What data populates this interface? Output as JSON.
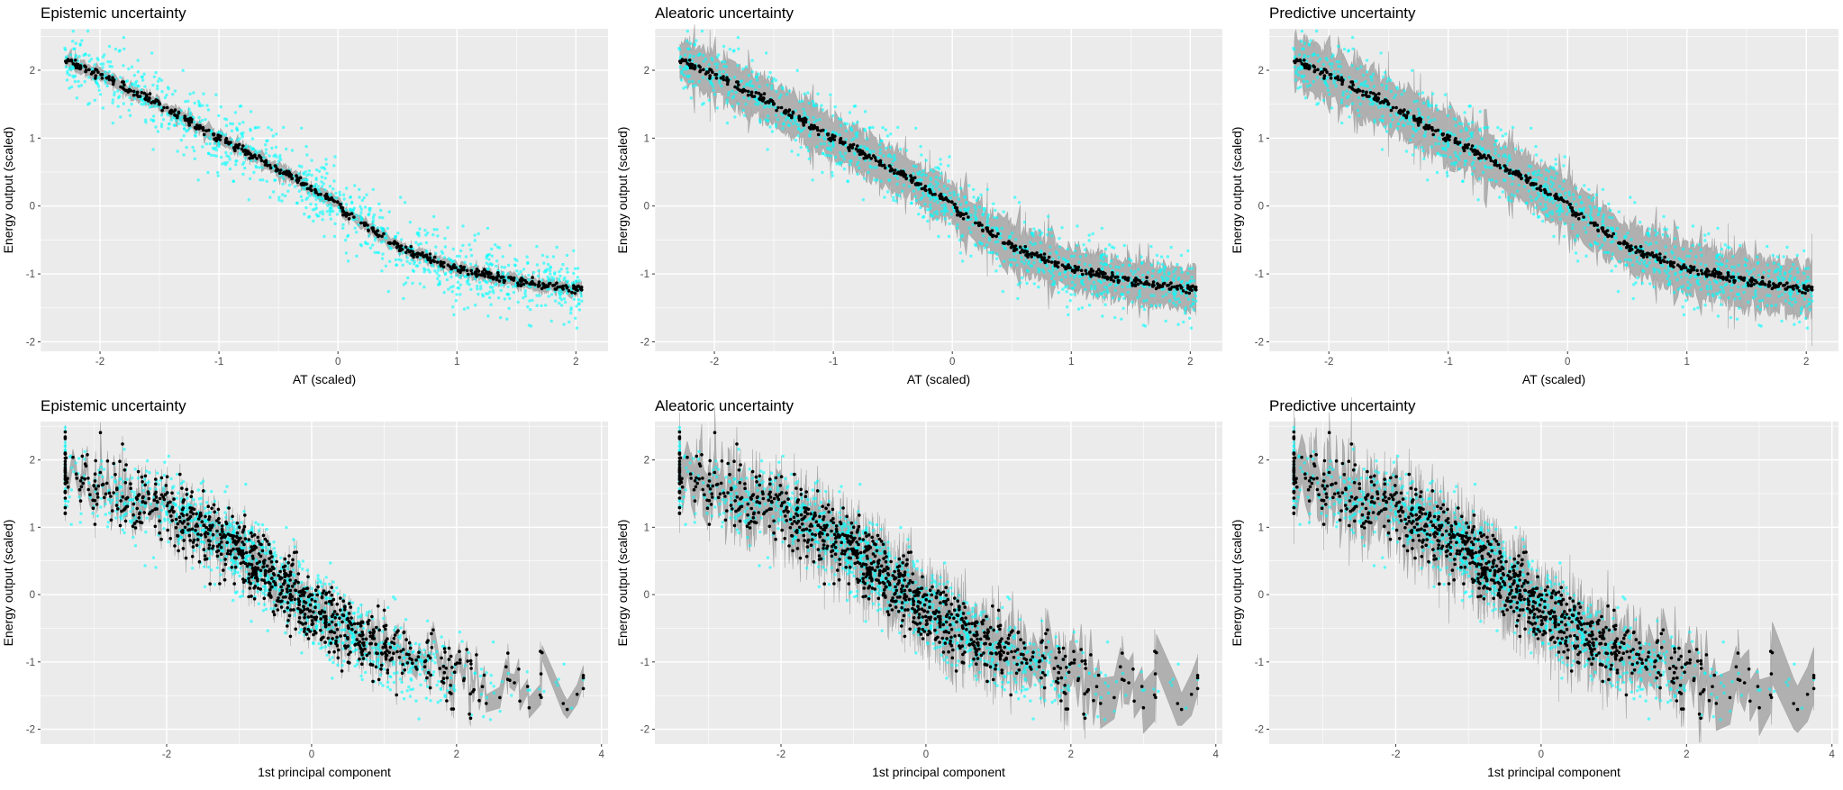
{
  "colors": {
    "panel_bg": "#EBEBEB",
    "grid": "#FFFFFF",
    "observed": "#00FFFF",
    "predicted": "#000000",
    "band": "#A6A6A6"
  },
  "chart_data": [
    {
      "type": "scatter",
      "title": "Epistemic uncertainty",
      "xlabel": "AT (scaled)",
      "ylabel": "Energy output (scaled)",
      "xlim": [
        -2.5,
        2.27
      ],
      "ylim": [
        -2.14,
        2.61
      ],
      "xticks": [
        -2,
        -1,
        0,
        1,
        2
      ],
      "yticks": [
        -2,
        -1,
        0,
        1,
        2
      ],
      "grid": true,
      "trend": {
        "x": [
          -2.3,
          -2.0,
          -1.5,
          -1.0,
          -0.5,
          -0.1,
          0.0,
          0.05,
          0.5,
          1.0,
          1.5,
          2.0,
          2.05
        ],
        "y": [
          2.15,
          1.93,
          1.5,
          1.0,
          0.55,
          0.12,
          0.08,
          -0.08,
          -0.6,
          -0.93,
          -1.1,
          -1.23,
          -1.2
        ]
      },
      "observed_sd": 0.25,
      "predicted_sd": 0.03,
      "band_halfwidth": 0.08
    },
    {
      "type": "scatter",
      "title": "Aleatoric uncertainty",
      "xlabel": "AT (scaled)",
      "ylabel": "Energy output (scaled)",
      "xlim": [
        -2.5,
        2.27
      ],
      "ylim": [
        -2.14,
        2.61
      ],
      "xticks": [
        -2,
        -1,
        0,
        1,
        2
      ],
      "yticks": [
        -2,
        -1,
        0,
        1,
        2
      ],
      "grid": true,
      "trend": {
        "x": [
          -2.3,
          -2.0,
          -1.5,
          -1.0,
          -0.5,
          -0.1,
          0.0,
          0.05,
          0.5,
          1.0,
          1.5,
          2.0,
          2.05
        ],
        "y": [
          2.15,
          1.93,
          1.5,
          1.0,
          0.55,
          0.12,
          0.08,
          -0.08,
          -0.6,
          -0.93,
          -1.1,
          -1.23,
          -1.2
        ]
      },
      "observed_sd": 0.25,
      "predicted_sd": 0.03,
      "band_halfwidth": 0.3
    },
    {
      "type": "scatter",
      "title": "Predictive uncertainty",
      "xlabel": "AT (scaled)",
      "ylabel": "Energy output (scaled)",
      "xlim": [
        -2.5,
        2.27
      ],
      "ylim": [
        -2.14,
        2.61
      ],
      "xticks": [
        -2,
        -1,
        0,
        1,
        2
      ],
      "yticks": [
        -2,
        -1,
        0,
        1,
        2
      ],
      "grid": true,
      "trend": {
        "x": [
          -2.3,
          -2.0,
          -1.5,
          -1.0,
          -0.5,
          -0.1,
          0.0,
          0.05,
          0.5,
          1.0,
          1.5,
          2.0,
          2.05
        ],
        "y": [
          2.15,
          1.93,
          1.5,
          1.0,
          0.55,
          0.12,
          0.08,
          -0.08,
          -0.6,
          -0.93,
          -1.1,
          -1.23,
          -1.2
        ]
      },
      "observed_sd": 0.25,
      "predicted_sd": 0.03,
      "band_halfwidth": 0.36
    },
    {
      "type": "scatter",
      "title": "Epistemic uncertainty",
      "xlabel": "1st principal component",
      "ylabel": "Energy output (scaled)",
      "xlim": [
        -3.74,
        4.09
      ],
      "ylim": [
        -2.22,
        2.57
      ],
      "xticks": [
        -2,
        0,
        2,
        4
      ],
      "yticks": [
        -2,
        -1,
        0,
        1,
        2
      ],
      "grid": true,
      "trend": {
        "x": [
          -3.4,
          -3.0,
          -2.0,
          -1.0,
          0.0,
          1.0,
          2.0,
          3.0,
          3.75
        ],
        "y": [
          1.8,
          1.55,
          1.3,
          0.65,
          -0.2,
          -0.85,
          -1.2,
          -1.35,
          -1.38
        ]
      },
      "observed_sd": 0.28,
      "predicted_sd": 0.25,
      "band_halfwidth": 0.1
    },
    {
      "type": "scatter",
      "title": "Aleatoric uncertainty",
      "xlabel": "1st principal component",
      "ylabel": "Energy output (scaled)",
      "xlim": [
        -3.74,
        4.09
      ],
      "ylim": [
        -2.22,
        2.57
      ],
      "xticks": [
        -2,
        0,
        2,
        4
      ],
      "yticks": [
        -2,
        -1,
        0,
        1,
        2
      ],
      "grid": true,
      "trend": {
        "x": [
          -3.4,
          -3.0,
          -2.0,
          -1.0,
          0.0,
          1.0,
          2.0,
          3.0,
          3.75
        ],
        "y": [
          1.8,
          1.55,
          1.3,
          0.65,
          -0.2,
          -0.85,
          -1.2,
          -1.35,
          -1.38
        ]
      },
      "observed_sd": 0.28,
      "predicted_sd": 0.25,
      "band_halfwidth": 0.28
    },
    {
      "type": "scatter",
      "title": "Predictive uncertainty",
      "xlabel": "1st principal component",
      "ylabel": "Energy output (scaled)",
      "xlim": [
        -3.74,
        4.09
      ],
      "ylim": [
        -2.22,
        2.57
      ],
      "xticks": [
        -2,
        0,
        2,
        4
      ],
      "yticks": [
        -2,
        -1,
        0,
        1,
        2
      ],
      "grid": true,
      "trend": {
        "x": [
          -3.4,
          -3.0,
          -2.0,
          -1.0,
          0.0,
          1.0,
          2.0,
          3.0,
          3.75
        ],
        "y": [
          1.8,
          1.55,
          1.3,
          0.65,
          -0.2,
          -0.85,
          -1.2,
          -1.35,
          -1.38
        ]
      },
      "observed_sd": 0.28,
      "predicted_sd": 0.25,
      "band_halfwidth": 0.32
    }
  ]
}
